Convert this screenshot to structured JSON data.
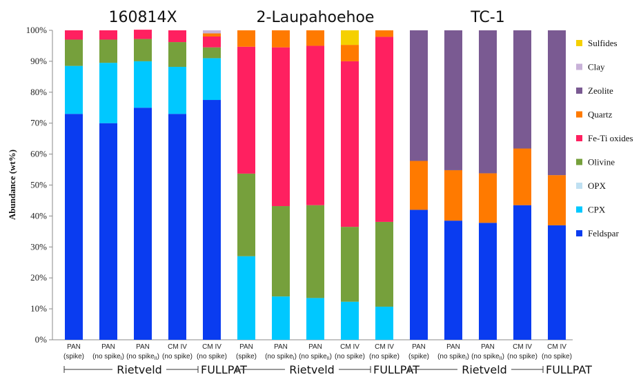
{
  "chart_data": {
    "type": "bar",
    "stacked": true,
    "title": "",
    "xlabel": "",
    "ylabel": "Abundance (wt%)",
    "ylim": [
      0,
      100
    ],
    "yticks": [
      "0%",
      "10%",
      "20%",
      "30%",
      "40%",
      "50%",
      "60%",
      "70%",
      "80%",
      "90%",
      "100%"
    ],
    "grid": false,
    "legend_position": "right",
    "groups": [
      {
        "title": "160814X",
        "start": 0,
        "end": 4
      },
      {
        "title": "2-Laupahoehoe",
        "start": 5,
        "end": 9
      },
      {
        "title": "TC-1",
        "start": 10,
        "end": 14
      }
    ],
    "methods": [
      {
        "label": "Rietveld",
        "start": 0,
        "end": 3
      },
      {
        "label": "FULLPAT",
        "start": 4,
        "end": 4
      },
      {
        "label": "Rietveld",
        "start": 5,
        "end": 8
      },
      {
        "label": "FULLPAT",
        "start": 9,
        "end": 9
      },
      {
        "label": "Rietveld",
        "start": 10,
        "end": 13
      },
      {
        "label": "FULLPAT",
        "start": 14,
        "end": 14
      }
    ],
    "categories": [
      {
        "line1": "PAN",
        "line2": "(spike)",
        "sub": ""
      },
      {
        "line1": "PAN",
        "line2": "(no spike",
        "sub": "I",
        "close": ")"
      },
      {
        "line1": "PAN",
        "line2": "(no spike",
        "sub": "II",
        "close": ")"
      },
      {
        "line1": "CM IV",
        "line2": "(no spike)",
        "sub": ""
      },
      {
        "line1": "CM IV",
        "line2": "(no spike)",
        "sub": ""
      },
      {
        "line1": "PAN",
        "line2": "(spike)",
        "sub": ""
      },
      {
        "line1": "PAN",
        "line2": "(no spike",
        "sub": "I",
        "close": ")"
      },
      {
        "line1": "PAN",
        "line2": "(no spike",
        "sub": "II",
        "close": ")"
      },
      {
        "line1": "CM IV",
        "line2": "(no spike)",
        "sub": ""
      },
      {
        "line1": "CM IV",
        "line2": "(no spike)",
        "sub": ""
      },
      {
        "line1": "PAN",
        "line2": "(spike)",
        "sub": ""
      },
      {
        "line1": "PAN",
        "line2": "(no spike",
        "sub": "I",
        "close": ")"
      },
      {
        "line1": "PAN",
        "line2": "(no spike",
        "sub": "II",
        "close": ")"
      },
      {
        "line1": "CM IV",
        "line2": "(no spike)",
        "sub": ""
      },
      {
        "line1": "CM IV",
        "line2": "(no spike)",
        "sub": ""
      }
    ],
    "series": [
      {
        "name": "Feldspar",
        "color": "#0A3CF0",
        "values": [
          73,
          70,
          75,
          73,
          77.5,
          0,
          0,
          0,
          0,
          0,
          42,
          38.5,
          37.8,
          43.5,
          37
        ]
      },
      {
        "name": "CPX",
        "color": "#00C8FF",
        "values": [
          15.5,
          19.5,
          15,
          15.2,
          13.5,
          27,
          14,
          13.5,
          12.3,
          10.7,
          0,
          0,
          0,
          0,
          0
        ]
      },
      {
        "name": "OPX",
        "color": "#BFE0F2",
        "values": [
          0,
          0,
          0,
          0,
          0,
          0,
          0,
          0,
          0,
          0,
          0,
          0,
          0,
          0,
          0
        ]
      },
      {
        "name": "Olivine",
        "color": "#76A03C",
        "values": [
          8.5,
          7.5,
          7.2,
          8,
          3.5,
          26.7,
          29.2,
          30,
          24.2,
          27.4,
          0,
          0,
          0,
          0,
          0
        ]
      },
      {
        "name": "Fe-Ti oxides",
        "color": "#FF2060",
        "values": [
          3,
          3,
          3,
          3.8,
          3.5,
          41,
          51.3,
          51.5,
          53.5,
          59.8,
          0,
          0,
          0,
          0,
          0
        ]
      },
      {
        "name": "Quartz",
        "color": "#FF7A00",
        "values": [
          0,
          0,
          0,
          0,
          1,
          5.3,
          5.5,
          5,
          5.3,
          2.1,
          15.8,
          16.3,
          16,
          18.3,
          16.2
        ]
      },
      {
        "name": "Zeolite",
        "color": "#7A5A92",
        "values": [
          0,
          0,
          0,
          0,
          0,
          0,
          0,
          0,
          0,
          0,
          42.2,
          45.2,
          46.2,
          38.2,
          46.8
        ]
      },
      {
        "name": "Clay",
        "color": "#C8B2D8",
        "values": [
          0,
          0,
          0,
          0,
          1,
          0,
          0,
          0,
          0,
          0,
          0,
          0,
          0,
          0,
          0
        ]
      },
      {
        "name": "Sulfides",
        "color": "#F5D000",
        "values": [
          0,
          0,
          0,
          0,
          0,
          0,
          0,
          0,
          4.7,
          0,
          0,
          0,
          0,
          0,
          0
        ]
      }
    ]
  }
}
